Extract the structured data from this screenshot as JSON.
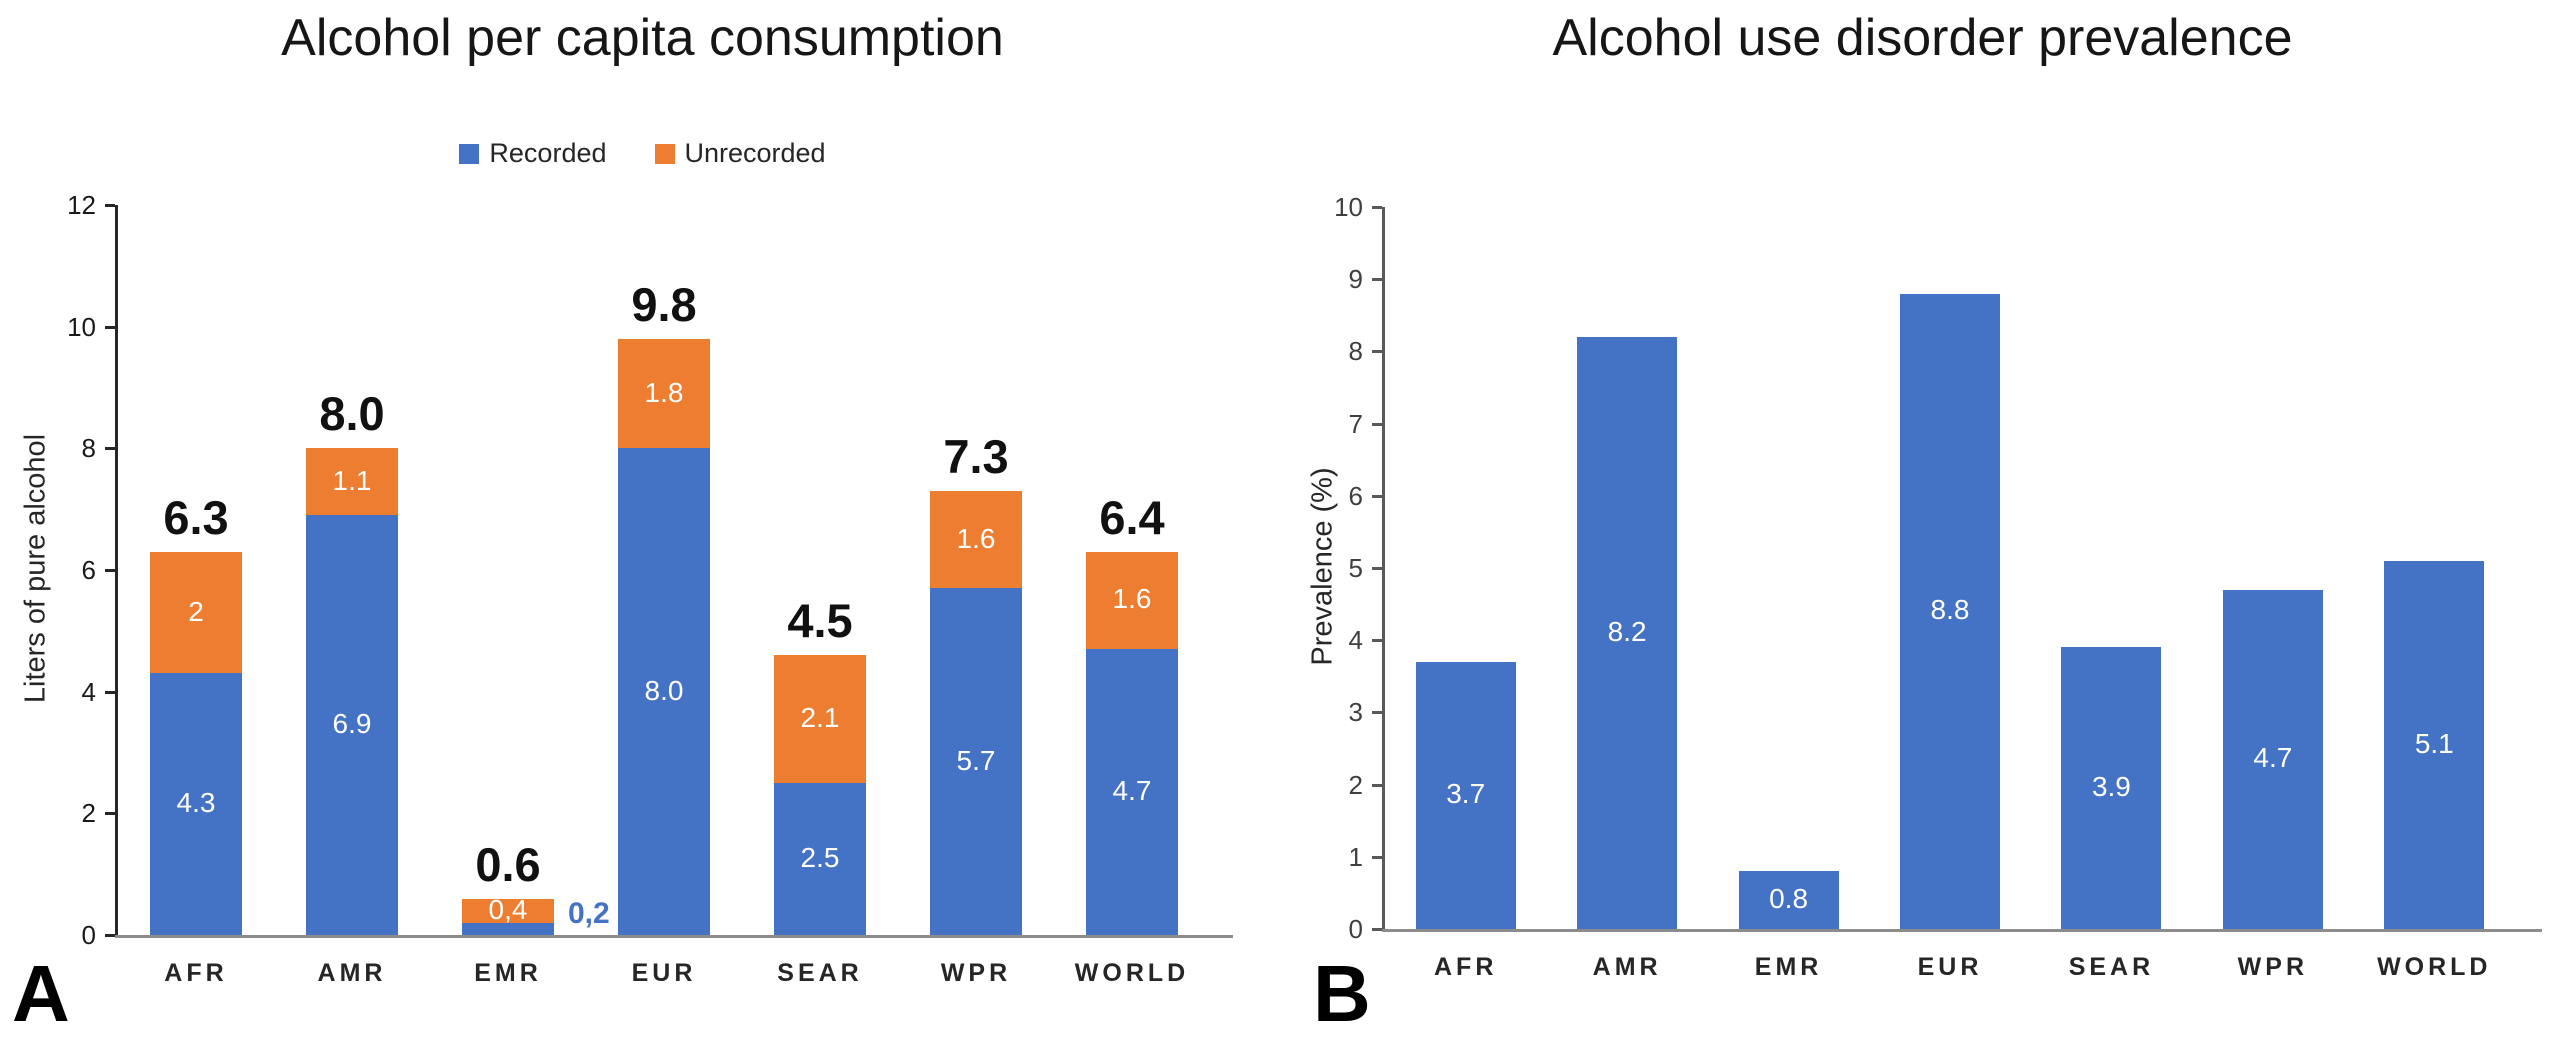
{
  "figure": {
    "background": "#ffffff",
    "accent_blue": "#4472C4",
    "accent_orange": "#ED7D31"
  },
  "chart_data": [
    {
      "type": "bar",
      "stacked": true,
      "panel_label": "A",
      "title": "Alcohol per capita consumption",
      "categories": [
        "AFR",
        "AMR",
        "EMR",
        "EUR",
        "SEAR",
        "WPR",
        "WORLD"
      ],
      "series": [
        {
          "name": "Recorded",
          "color": "#4472C4",
          "values": [
            4.3,
            6.9,
            0.2,
            8.0,
            2.5,
            5.7,
            4.7
          ],
          "labels": [
            "4.3",
            "6.9",
            "0,2",
            "8.0",
            "2.5",
            "5.7",
            "4.7"
          ]
        },
        {
          "name": "Unrecorded",
          "color": "#ED7D31",
          "values": [
            2,
            1.1,
            0.4,
            1.8,
            2.1,
            1.6,
            1.6
          ],
          "labels": [
            "2",
            "1.1",
            "0,4",
            "1.8",
            "2.1",
            "1.6",
            "1.6"
          ]
        }
      ],
      "totals": [
        "6.3",
        "8.0",
        "0.6",
        "9.8",
        "4.5",
        "7.3",
        "6.4"
      ],
      "xlabel": "",
      "ylabel": "Liters of pure alcohol",
      "ylim": [
        0,
        12
      ],
      "yticks": [
        0,
        2,
        4,
        6,
        8,
        10,
        12
      ],
      "grid": false,
      "legend_position": "top"
    },
    {
      "type": "bar",
      "stacked": false,
      "panel_label": "B",
      "title": "Alcohol use disorder prevalence",
      "categories": [
        "AFR",
        "AMR",
        "EMR",
        "EUR",
        "SEAR",
        "WPR",
        "WORLD"
      ],
      "series": [
        {
          "name": "Prevalence",
          "color": "#4472C4",
          "values": [
            3.7,
            8.2,
            0.8,
            8.8,
            3.9,
            4.7,
            5.1
          ],
          "labels": [
            "3.7",
            "8.2",
            "0.8",
            "8.8",
            "3.9",
            "4.7",
            "5.1"
          ]
        }
      ],
      "totals": null,
      "xlabel": "",
      "ylabel": "Prevalence (%)",
      "ylim": [
        0,
        10
      ],
      "yticks": [
        0,
        1,
        2,
        3,
        4,
        5,
        6,
        7,
        8,
        9,
        10
      ],
      "grid": false,
      "legend_position": "none"
    }
  ]
}
